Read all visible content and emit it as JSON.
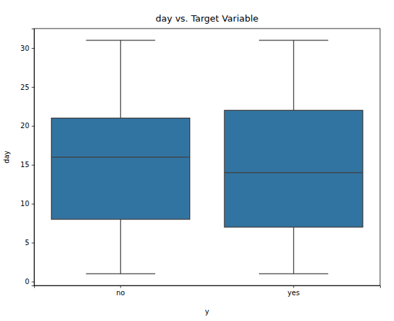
{
  "chart_data": {
    "type": "box",
    "title": "day vs. Target Variable",
    "x_label": "y",
    "y_label": "day",
    "categories": [
      "no",
      "yes"
    ],
    "min": [
      1,
      1
    ],
    "q1": [
      8,
      7
    ],
    "median": [
      16,
      14
    ],
    "q3": [
      21,
      22
    ],
    "max": [
      31,
      31
    ],
    "color": "#3274a1",
    "ylim": [
      -0.5,
      32.5
    ],
    "yticks": [
      0,
      5,
      10,
      15,
      20,
      25,
      30
    ],
    "grid": false
  }
}
